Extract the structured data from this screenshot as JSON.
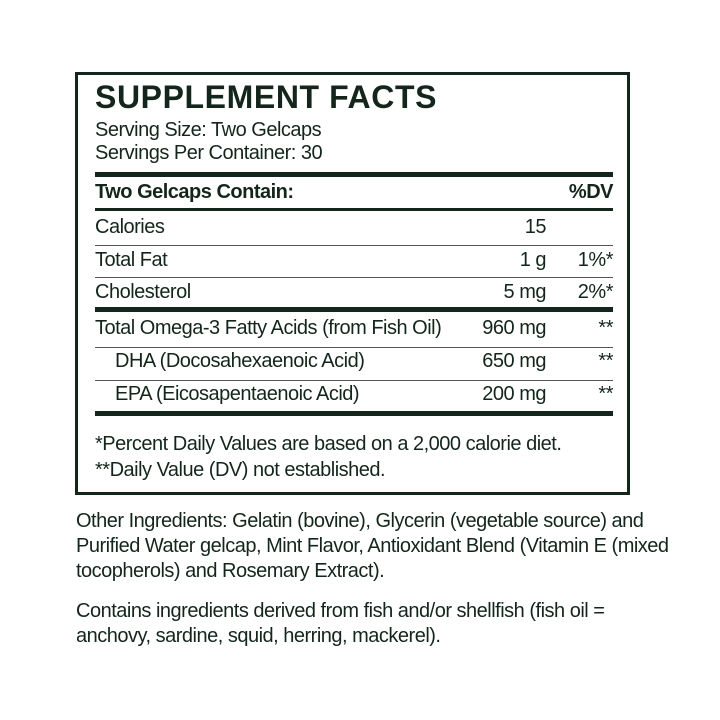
{
  "title": "SUPPLEMENT FACTS",
  "serving_size": "Serving Size: Two Gelcaps",
  "servings_per_container": "Servings Per Container: 30",
  "header": {
    "contain": "Two Gelcaps Contain:",
    "dv": "%DV"
  },
  "rows": [
    {
      "name": "Calories",
      "amount": "15",
      "dv": ""
    },
    {
      "name": "Total Fat",
      "amount": "1 g",
      "dv": "1%*"
    },
    {
      "name": "Cholesterol",
      "amount": "5 mg",
      "dv": "2%*"
    },
    {
      "name": "Total Omega-3 Fatty Acids (from Fish Oil)",
      "amount": "960 mg",
      "dv": "**"
    },
    {
      "name": "DHA (Docosahexaenoic Acid)",
      "amount": "650 mg",
      "dv": "**"
    },
    {
      "name": "EPA (Eicosapentaenoic Acid)",
      "amount": "200 mg",
      "dv": "**"
    }
  ],
  "footnotes": [
    "*Percent Daily Values are based on a 2,000 calorie diet.",
    "**Daily Value (DV) not established."
  ],
  "other_ingredients": "Other Ingredients: Gelatin (bovine), Glycerin (vegetable source) and Purified Water gelcap, Mint Flavor, Antioxidant Blend (Vitamin E (mixed tocopherols) and Rosemary Extract).",
  "allergen": "Contains ingredients derived from fish and/or shellfish (fish oil = anchovy, sardine, squid, herring, mackerel).",
  "colors": {
    "ink": "#14261c"
  }
}
